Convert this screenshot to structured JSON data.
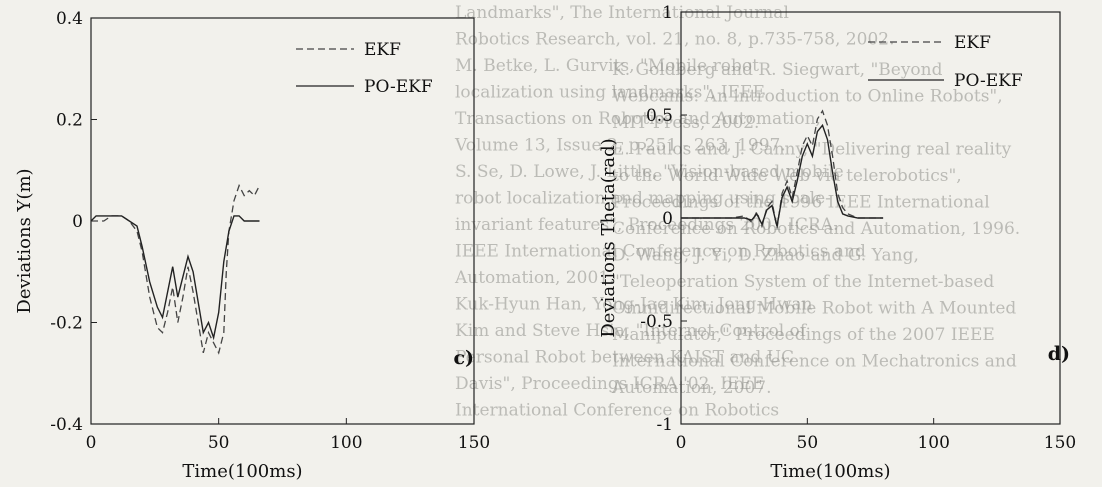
{
  "colors": {
    "ekf": "#444444",
    "poekf": "#222222",
    "axis": "#222222"
  },
  "background_text": [
    "Landmarks\", The International Journal",
    "Robotics Research, vol. 21, no. 8, p.735-758, 2002.",
    "M. Betke, L. Gurvits, \"Mobile robot",
    "localization using landmarks\", IEEE",
    "Transactions on Robotics and Automation,",
    "Volume 13, Issue 2, p.251 - 263, 1997.",
    "S. Se, D. Lowe, J. Little, \"Vision-based mobile",
    "robot localization and mapping using scale-",
    "invariant features\", Proceedings 2001 ICRA.",
    "IEEE International Conference on Robotics and",
    "Automation, 2001.",
    "Kuk-Hyun Han, Yong-Jae Kim, Jong-Hwan",
    "Kim and Steve Hsia, \"Internet Control of",
    "Personal Robot between KAIST and UC",
    "Davis\", Proceedings ICRA '02. IEEE",
    "International Conference on Robotics",
    "K. Goldberg and R. Siegwart, \"Beyond",
    "Webcams: An introduction to Online Robots\",",
    "MIT Press, 2002.",
    "E. Paulos and J. Canny, \"Delivering real reality",
    "to the World Wide Web via telerobotics\",",
    "Proceedings of the 1996 IEEE International",
    "Conference on Robotics and Automation, 1996.",
    "D. Wang, J. Yi, D. Zhao and G. Yang,",
    "\"Teleoperation System of the Internet-based",
    "Omnidirectional Mobile Robot with A Mounted",
    "Manipulator,\" Proceedings of the 2007 IEEE",
    "International Conference on Mechatronics and",
    "Automation, 2007."
  ],
  "chart_data": [
    {
      "type": "line",
      "panel_label": "c)",
      "xlabel": "Time(100ms)",
      "ylabel": "Deviations Y(m)",
      "xlim": [
        0,
        150
      ],
      "ylim": [
        -0.4,
        0.4
      ],
      "xticks": [
        "0",
        "50",
        "100",
        "150"
      ],
      "yticks": [
        "-0.4",
        "-0.2",
        "0",
        "0.2",
        "0.4"
      ],
      "legend_position": "top-right",
      "series": [
        {
          "name": "EKF",
          "style": "dashed",
          "x": [
            0,
            2,
            5,
            8,
            12,
            15,
            18,
            20,
            23,
            26,
            28,
            30,
            32,
            34,
            36,
            38,
            40,
            42,
            44,
            46,
            48,
            50,
            52,
            53,
            54,
            56,
            58,
            60,
            62,
            64,
            66
          ],
          "y": [
            0.0,
            0.0,
            0.0,
            0.01,
            0.01,
            0.0,
            -0.02,
            -0.06,
            -0.15,
            -0.21,
            -0.22,
            -0.18,
            -0.13,
            -0.2,
            -0.15,
            -0.09,
            -0.14,
            -0.2,
            -0.26,
            -0.22,
            -0.24,
            -0.26,
            -0.22,
            -0.1,
            -0.02,
            0.04,
            0.07,
            0.05,
            0.06,
            0.05,
            0.07
          ]
        },
        {
          "name": "PO-EKF",
          "style": "solid",
          "x": [
            0,
            2,
            5,
            8,
            12,
            15,
            18,
            20,
            23,
            26,
            28,
            30,
            32,
            34,
            36,
            38,
            40,
            42,
            44,
            46,
            48,
            50,
            52,
            54,
            56,
            58,
            60,
            62,
            64,
            66
          ],
          "y": [
            0.0,
            0.01,
            0.01,
            0.01,
            0.01,
            0.0,
            -0.01,
            -0.05,
            -0.12,
            -0.17,
            -0.19,
            -0.14,
            -0.09,
            -0.15,
            -0.11,
            -0.07,
            -0.1,
            -0.16,
            -0.22,
            -0.2,
            -0.23,
            -0.18,
            -0.08,
            -0.02,
            0.01,
            0.01,
            0.0,
            0.0,
            0.0,
            0.0
          ]
        }
      ]
    },
    {
      "type": "line",
      "panel_label": "d)",
      "xlabel": "Time(100ms)",
      "ylabel": "Deviations Theta(rad)",
      "xlim": [
        0,
        150
      ],
      "ylim": [
        -1,
        1
      ],
      "xticks": [
        "0",
        "50",
        "100",
        "150"
      ],
      "yticks": [
        "-1",
        "-0.5",
        "0",
        "0.5",
        "1"
      ],
      "legend_position": "top-right",
      "series": [
        {
          "name": "EKF",
          "style": "dashed",
          "x": [
            0,
            10,
            20,
            25,
            28,
            30,
            32,
            34,
            36,
            38,
            40,
            42,
            44,
            46,
            48,
            50,
            52,
            54,
            56,
            58,
            60,
            62,
            64,
            66,
            70,
            80
          ],
          "y": [
            0.0,
            0.0,
            0.0,
            0.01,
            -0.02,
            0.03,
            -0.04,
            0.05,
            0.08,
            -0.05,
            0.12,
            0.18,
            0.1,
            0.22,
            0.35,
            0.4,
            0.35,
            0.48,
            0.52,
            0.45,
            0.3,
            0.12,
            0.05,
            0.02,
            0.0,
            0.0
          ]
        },
        {
          "name": "PO-EKF",
          "style": "solid",
          "x": [
            0,
            10,
            20,
            25,
            28,
            30,
            32,
            34,
            36,
            38,
            40,
            42,
            44,
            46,
            48,
            50,
            52,
            54,
            56,
            58,
            60,
            62,
            64,
            66,
            70,
            80
          ],
          "y": [
            0.0,
            0.0,
            0.0,
            0.0,
            -0.01,
            0.02,
            -0.03,
            0.04,
            0.06,
            -0.04,
            0.1,
            0.15,
            0.08,
            0.18,
            0.3,
            0.36,
            0.3,
            0.42,
            0.45,
            0.38,
            0.22,
            0.08,
            0.02,
            0.01,
            0.0,
            0.0
          ]
        }
      ]
    }
  ]
}
